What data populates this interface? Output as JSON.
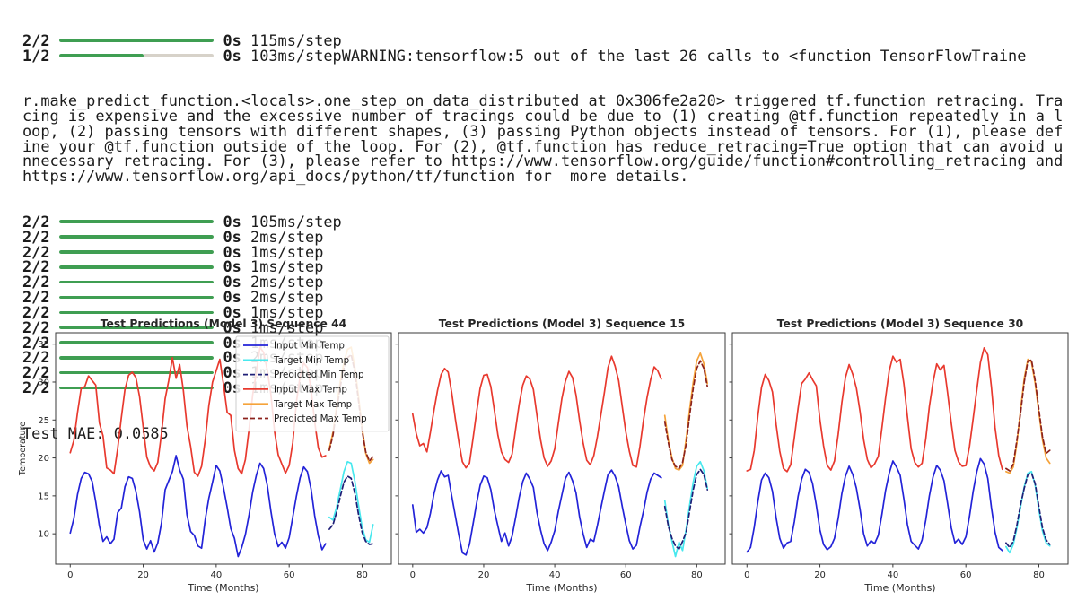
{
  "console": {
    "bar_color": "#3f9e52",
    "bar_rest_color": "#d7d2c9",
    "progress_lines_top": [
      {
        "label": "2/2",
        "fraction": 1.0,
        "time": "0s",
        "rate": "115ms/step",
        "tail": ""
      },
      {
        "label": "1/2",
        "fraction": 0.55,
        "time": "0s",
        "rate": "103ms/step",
        "tail": "WARNING:tensorflow:5 out of the last 26 calls to <function TensorFlowTraine"
      }
    ],
    "warning_lines": [
      "r.make_predict_function.<locals>.one_step_on_data_distributed at 0x306fe2a20> triggered tf.function retracing. Tra",
      "cing is expensive and the excessive number of tracings could be due to (1) creating @tf.function repeatedly in a l",
      "oop, (2) passing tensors with different shapes, (3) passing Python objects instead of tensors. For (1), please def",
      "ine your @tf.function outside of the loop. For (2), @tf.function has reduce_retracing=True option that can avoid u",
      "nnecessary retracing. For (3), please refer to https://www.tensorflow.org/guide/function#controlling_retracing and",
      "https://www.tensorflow.org/api_docs/python/tf/function for  more details."
    ],
    "progress_lines": [
      {
        "label": "2/2",
        "fraction": 1.0,
        "time": "0s",
        "rate": "105ms/step"
      },
      {
        "label": "2/2",
        "fraction": 1.0,
        "time": "0s",
        "rate": "2ms/step"
      },
      {
        "label": "2/2",
        "fraction": 1.0,
        "time": "0s",
        "rate": "1ms/step"
      },
      {
        "label": "2/2",
        "fraction": 1.0,
        "time": "0s",
        "rate": "1ms/step"
      },
      {
        "label": "2/2",
        "fraction": 1.0,
        "time": "0s",
        "rate": "2ms/step"
      },
      {
        "label": "2/2",
        "fraction": 1.0,
        "time": "0s",
        "rate": "2ms/step"
      },
      {
        "label": "2/2",
        "fraction": 1.0,
        "time": "0s",
        "rate": "1ms/step"
      },
      {
        "label": "2/2",
        "fraction": 1.0,
        "time": "0s",
        "rate": "1ms/step"
      },
      {
        "label": "2/2",
        "fraction": 1.0,
        "time": "0s",
        "rate": "1ms/step"
      },
      {
        "label": "2/2",
        "fraction": 1.0,
        "time": "0s",
        "rate": "2ms/step"
      },
      {
        "label": "2/2",
        "fraction": 1.0,
        "time": "0s",
        "rate": "1ms/step"
      },
      {
        "label": "2/2",
        "fraction": 1.0,
        "time": "0s",
        "rate": "1ms/step"
      }
    ],
    "result": "Test MAE: 0.0585"
  },
  "chart_data": [
    {
      "type": "line",
      "title": "Test Predictions (Model 3) Sequence 44",
      "xlabel": "Time (Months)",
      "ylabel": "Temperature",
      "show_ylabel": true,
      "show_ytick_labels": true,
      "legend": true,
      "legend_position": "upper right",
      "grid": false,
      "xlim": [
        -4,
        88
      ],
      "ylim": [
        6,
        36.5
      ],
      "xticks": [
        0,
        20,
        40,
        60,
        80
      ],
      "yticks": [
        10,
        15,
        20,
        25,
        30,
        35
      ],
      "series": [
        {
          "name": "Input Min Temp",
          "color": "#2323d8",
          "dash": false,
          "x_start": 0,
          "x_step": 1,
          "values": [
            10.1,
            12.0,
            15.2,
            17.3,
            18.1,
            17.9,
            16.9,
            14.2,
            11.0,
            9.0,
            9.6,
            8.7,
            9.3,
            12.8,
            13.4,
            16.2,
            17.5,
            17.3,
            15.6,
            12.9,
            9.2,
            8.0,
            9.1,
            7.6,
            8.8,
            11.4,
            15.8,
            17.0,
            18.2,
            20.3,
            18.4,
            17.2,
            12.5,
            10.3,
            9.8,
            8.4,
            8.1,
            11.9,
            14.7,
            16.8,
            19.0,
            18.3,
            16.1,
            13.5,
            10.7,
            9.4,
            7.0,
            8.2,
            9.9,
            12.5,
            15.5,
            17.7,
            19.3,
            18.6,
            16.4,
            13.0,
            10.0,
            8.3,
            8.9,
            8.1,
            9.5,
            12.2,
            15.0,
            17.4,
            18.8,
            18.2,
            15.9,
            12.4,
            9.7,
            7.9,
            8.7
          ]
        },
        {
          "name": "Target Min Temp",
          "color": "#48e8ee",
          "dash": false,
          "x_start": 71,
          "x_step": 1,
          "values": [
            12.2,
            11.8,
            13.5,
            15.8,
            18.2,
            19.5,
            19.3,
            17.0,
            13.8,
            10.9,
            9.2,
            8.9,
            11.2
          ]
        },
        {
          "name": "Predicted Min Temp",
          "color": "#1f1f77",
          "dash": true,
          "x_start": 71,
          "x_step": 1,
          "values": [
            10.6,
            11.2,
            12.8,
            14.9,
            16.8,
            17.6,
            17.3,
            15.4,
            12.6,
            10.2,
            9.0,
            8.6,
            8.7
          ]
        },
        {
          "name": "Input Max Temp",
          "color": "#e8392e",
          "dash": false,
          "x_start": 0,
          "x_step": 1,
          "values": [
            20.7,
            22.3,
            26.0,
            29.2,
            29.4,
            30.8,
            30.2,
            29.6,
            24.6,
            22.9,
            18.7,
            18.4,
            17.9,
            21.2,
            25.3,
            29.0,
            30.9,
            31.3,
            30.6,
            28.1,
            24.0,
            20.1,
            18.8,
            18.3,
            19.4,
            23.2,
            27.8,
            30.2,
            33.2,
            30.5,
            32.3,
            28.9,
            24.2,
            21.5,
            18.1,
            17.6,
            18.9,
            22.4,
            26.9,
            30.0,
            31.5,
            33.0,
            29.7,
            26.0,
            25.6,
            21.0,
            18.6,
            17.9,
            19.8,
            23.8,
            28.3,
            31.2,
            34.6,
            33.9,
            31.6,
            28.4,
            23.5,
            20.4,
            19.2,
            18.0,
            19.0,
            22.0,
            27.4,
            30.8,
            32.5,
            31.9,
            29.0,
            24.8,
            21.3,
            20.1,
            20.3
          ]
        },
        {
          "name": "Target Max Temp",
          "color": "#f5a33b",
          "dash": false,
          "x_start": 71,
          "x_step": 1,
          "values": [
            21.2,
            23.4,
            26.8,
            30.1,
            32.6,
            34.3,
            34.6,
            32.0,
            28.2,
            24.0,
            20.6,
            19.3,
            19.8
          ]
        },
        {
          "name": "Predicted Max Temp",
          "color": "#8c221c",
          "dash": true,
          "x_start": 71,
          "x_step": 1,
          "values": [
            21.0,
            23.0,
            26.2,
            29.4,
            31.8,
            33.2,
            33.6,
            31.4,
            27.6,
            23.6,
            20.8,
            19.6,
            20.2
          ]
        }
      ]
    },
    {
      "type": "line",
      "title": "Test Predictions (Model 3) Sequence 15",
      "xlabel": "Time (Months)",
      "ylabel": "",
      "show_ylabel": false,
      "show_ytick_labels": false,
      "legend": false,
      "grid": false,
      "xlim": [
        -4,
        88
      ],
      "ylim": [
        6,
        36.5
      ],
      "xticks": [
        0,
        20,
        40,
        60,
        80
      ],
      "yticks": [
        10,
        15,
        20,
        25,
        30,
        35
      ],
      "series": [
        {
          "name": "Input Min Temp",
          "color": "#2323d8",
          "dash": false,
          "x_start": 0,
          "x_step": 1,
          "values": [
            13.8,
            10.2,
            10.6,
            10.1,
            10.8,
            12.7,
            15.3,
            17.1,
            18.3,
            17.5,
            17.7,
            15.0,
            12.4,
            9.8,
            7.5,
            7.2,
            8.6,
            11.3,
            14.0,
            16.4,
            17.6,
            17.4,
            15.8,
            13.1,
            11.0,
            9.0,
            10.1,
            8.4,
            9.7,
            12.2,
            14.8,
            16.9,
            18.0,
            17.2,
            16.1,
            12.8,
            10.5,
            8.7,
            7.8,
            8.9,
            10.4,
            12.9,
            15.1,
            17.3,
            18.1,
            17.0,
            15.4,
            12.2,
            10.0,
            8.2,
            9.3,
            9.0,
            11.1,
            13.4,
            15.7,
            17.8,
            18.4,
            17.6,
            16.2,
            13.6,
            11.3,
            9.1,
            8.0,
            8.5,
            10.9,
            13.0,
            15.5,
            17.2,
            18.0,
            17.7,
            17.4
          ]
        },
        {
          "name": "Target Min Temp",
          "color": "#48e8ee",
          "dash": false,
          "x_start": 71,
          "x_step": 1,
          "values": [
            14.4,
            11.2,
            9.0,
            7.0,
            8.9,
            7.8,
            10.6,
            13.8,
            16.8,
            18.9,
            19.5,
            18.3,
            16.0
          ]
        },
        {
          "name": "Predicted Min Temp",
          "color": "#1f1f77",
          "dash": true,
          "x_start": 71,
          "x_step": 1,
          "values": [
            13.6,
            11.0,
            9.4,
            8.4,
            8.0,
            9.0,
            10.2,
            13.0,
            15.8,
            17.8,
            18.5,
            17.8,
            15.8
          ]
        },
        {
          "name": "Input Max Temp",
          "color": "#e8392e",
          "dash": false,
          "x_start": 0,
          "x_step": 1,
          "values": [
            25.8,
            23.2,
            21.6,
            21.9,
            20.8,
            23.4,
            26.3,
            28.9,
            31.0,
            31.8,
            31.3,
            28.6,
            25.2,
            22.1,
            19.5,
            18.7,
            19.3,
            22.6,
            26.0,
            29.2,
            30.9,
            31.0,
            29.4,
            26.3,
            23.0,
            20.8,
            19.8,
            19.4,
            20.5,
            23.9,
            27.1,
            29.6,
            30.8,
            30.4,
            29.0,
            25.6,
            22.4,
            20.0,
            18.9,
            19.6,
            21.2,
            24.5,
            27.8,
            30.1,
            31.4,
            30.6,
            28.3,
            24.9,
            22.0,
            19.7,
            19.1,
            20.3,
            22.8,
            25.7,
            28.7,
            31.9,
            33.4,
            32.1,
            30.2,
            26.8,
            23.5,
            20.9,
            19.0,
            18.8,
            21.5,
            25.0,
            28.0,
            30.3,
            32.0,
            31.5,
            30.4
          ]
        },
        {
          "name": "Target Max Temp",
          "color": "#f5a33b",
          "dash": false,
          "x_start": 71,
          "x_step": 1,
          "values": [
            25.6,
            22.3,
            20.0,
            18.6,
            18.4,
            19.0,
            22.5,
            26.4,
            30.0,
            32.8,
            33.8,
            32.4,
            29.8
          ]
        },
        {
          "name": "Predicted Max Temp",
          "color": "#8c221c",
          "dash": true,
          "x_start": 71,
          "x_step": 1,
          "values": [
            24.8,
            22.0,
            19.8,
            18.9,
            18.6,
            19.4,
            21.8,
            25.6,
            29.2,
            31.8,
            32.8,
            31.8,
            29.4
          ]
        }
      ]
    },
    {
      "type": "line",
      "title": "Test Predictions (Model 3) Sequence 30",
      "xlabel": "Time (Months)",
      "ylabel": "",
      "show_ylabel": false,
      "show_ytick_labels": false,
      "legend": false,
      "grid": false,
      "xlim": [
        -4,
        88
      ],
      "ylim": [
        6,
        36.5
      ],
      "xticks": [
        0,
        20,
        40,
        60,
        80
      ],
      "yticks": [
        10,
        15,
        20,
        25,
        30,
        35
      ],
      "series": [
        {
          "name": "Input Min Temp",
          "color": "#2323d8",
          "dash": false,
          "x_start": 0,
          "x_step": 1,
          "values": [
            7.6,
            8.2,
            10.9,
            14.3,
            17.1,
            18.0,
            17.4,
            15.6,
            12.1,
            9.4,
            8.1,
            8.8,
            9.0,
            11.6,
            14.9,
            17.2,
            18.5,
            18.1,
            16.6,
            13.8,
            10.5,
            8.6,
            7.9,
            8.3,
            9.4,
            12.0,
            15.3,
            17.6,
            18.9,
            17.8,
            16.0,
            13.2,
            10.0,
            8.4,
            9.1,
            8.7,
            9.8,
            12.6,
            15.7,
            18.0,
            19.6,
            18.8,
            17.7,
            14.6,
            11.2,
            9.0,
            8.5,
            8.0,
            9.2,
            11.8,
            15.0,
            17.5,
            19.0,
            18.4,
            17.0,
            14.0,
            10.8,
            8.8,
            9.3,
            8.6,
            9.6,
            12.3,
            15.6,
            18.2,
            19.9,
            19.2,
            17.3,
            13.5,
            10.2,
            8.2,
            7.8
          ]
        },
        {
          "name": "Target Min Temp",
          "color": "#48e8ee",
          "dash": false,
          "x_start": 71,
          "x_step": 1,
          "values": [
            8.3,
            7.5,
            8.6,
            10.8,
            13.6,
            16.2,
            18.0,
            18.2,
            16.4,
            13.2,
            10.4,
            8.8,
            8.4
          ]
        },
        {
          "name": "Predicted Min Temp",
          "color": "#1f1f77",
          "dash": true,
          "x_start": 71,
          "x_step": 1,
          "values": [
            8.8,
            8.2,
            9.0,
            11.2,
            13.9,
            16.0,
            17.8,
            18.0,
            16.6,
            13.6,
            10.8,
            9.2,
            8.6
          ]
        },
        {
          "name": "Input Max Temp",
          "color": "#e8392e",
          "dash": false,
          "x_start": 0,
          "x_step": 1,
          "values": [
            18.3,
            18.5,
            21.0,
            25.6,
            29.3,
            31.0,
            30.2,
            28.7,
            24.4,
            20.9,
            18.6,
            18.2,
            19.1,
            22.7,
            26.5,
            29.8,
            30.4,
            31.2,
            30.3,
            29.5,
            25.0,
            21.6,
            19.0,
            18.4,
            19.6,
            23.1,
            27.3,
            30.6,
            32.3,
            31.0,
            29.2,
            26.1,
            22.4,
            19.8,
            18.7,
            19.2,
            20.2,
            24.0,
            27.9,
            31.5,
            33.4,
            32.6,
            33.0,
            29.8,
            25.4,
            21.2,
            19.4,
            18.8,
            19.3,
            22.5,
            26.8,
            30.0,
            32.4,
            31.6,
            32.2,
            28.6,
            24.6,
            21.0,
            19.5,
            18.9,
            19.0,
            21.5,
            25.2,
            29.0,
            32.6,
            34.5,
            33.6,
            29.4,
            24.0,
            20.3,
            18.5
          ]
        },
        {
          "name": "Target Max Temp",
          "color": "#f5a33b",
          "dash": false,
          "x_start": 71,
          "x_step": 1,
          "values": [
            18.2,
            18.0,
            18.8,
            22.0,
            26.4,
            30.5,
            33.0,
            32.6,
            29.8,
            26.0,
            22.4,
            20.0,
            19.3
          ]
        },
        {
          "name": "Predicted Max Temp",
          "color": "#8c221c",
          "dash": true,
          "x_start": 71,
          "x_step": 1,
          "values": [
            18.6,
            18.3,
            19.2,
            22.4,
            26.0,
            30.0,
            32.8,
            32.9,
            30.2,
            26.4,
            22.8,
            20.6,
            21.0
          ]
        }
      ]
    }
  ]
}
